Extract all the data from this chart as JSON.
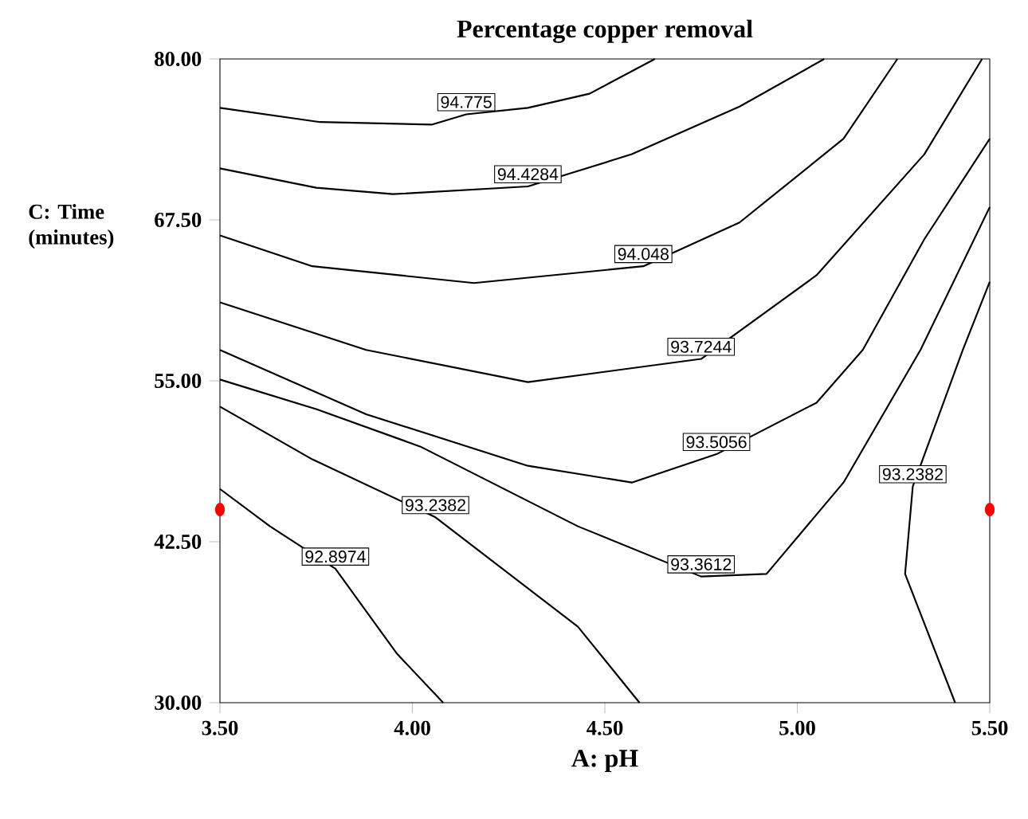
{
  "chart_data": {
    "type": "line",
    "title": "Percentage copper removal",
    "xlabel": "A: pH",
    "ylabel": "C: Time (minutes)",
    "xlim": [
      3.5,
      5.5
    ],
    "ylim": [
      30,
      80
    ],
    "xticks": [
      {
        "value": 3.5,
        "label": "3.50"
      },
      {
        "value": 4.0,
        "label": "4.00"
      },
      {
        "value": 4.5,
        "label": "4.50"
      },
      {
        "value": 5.0,
        "label": "5.00"
      },
      {
        "value": 5.5,
        "label": "5.50"
      }
    ],
    "yticks": [
      {
        "value": 30,
        "label": "30.00"
      },
      {
        "value": 42.5,
        "label": "42.50"
      },
      {
        "value": 55,
        "label": "55.00"
      },
      {
        "value": 67.5,
        "label": "67.50"
      },
      {
        "value": 80,
        "label": "80.00"
      }
    ],
    "grid": false,
    "series": [
      {
        "name": "94.775",
        "color": "#000000",
        "x": [
          3.5,
          3.76,
          4.05,
          4.14,
          4.3,
          4.46,
          4.63
        ],
        "values": [
          76.2,
          75.1,
          74.9,
          75.7,
          76.2,
          77.3,
          80.0
        ]
      },
      {
        "name": "94.4284",
        "color": "#000000",
        "x": [
          3.5,
          3.75,
          3.95,
          4.3,
          4.57,
          4.85,
          5.07
        ],
        "values": [
          71.5,
          70.0,
          69.5,
          70.1,
          72.6,
          76.3,
          80.0
        ]
      },
      {
        "name": "94.048",
        "color": "#000000",
        "x": [
          3.5,
          3.74,
          4.16,
          4.6,
          4.85,
          5.12,
          5.26
        ],
        "values": [
          66.3,
          63.9,
          62.6,
          63.9,
          67.3,
          73.8,
          80.0
        ]
      },
      {
        "name": "93.7244",
        "color": "#000000",
        "x": [
          3.5,
          3.88,
          4.3,
          4.75,
          5.05,
          5.33,
          5.48
        ],
        "values": [
          61.1,
          57.4,
          54.9,
          56.7,
          63.2,
          72.6,
          80.0
        ]
      },
      {
        "name": "93.5056",
        "color": "#000000",
        "x": [
          3.5,
          3.88,
          4.3,
          4.57,
          4.79,
          5.05,
          5.17,
          5.33,
          5.5
        ],
        "values": [
          57.4,
          52.4,
          48.4,
          47.1,
          49.3,
          53.3,
          57.4,
          66.0,
          73.8
        ]
      },
      {
        "name": "93.3612",
        "color": "#000000",
        "x": [
          3.5,
          3.75,
          4.02,
          4.43,
          4.75,
          4.92,
          5.12,
          5.32,
          5.5
        ],
        "values": [
          55.1,
          52.8,
          49.9,
          43.7,
          39.8,
          40.0,
          47.1,
          57.4,
          68.5
        ]
      },
      {
        "name": "93.2382",
        "color": "#000000",
        "x": [
          3.5,
          3.74,
          4.06,
          4.43,
          4.59
        ],
        "values": [
          53.0,
          48.9,
          44.4,
          35.9,
          30.0
        ]
      },
      {
        "name": "93.2382",
        "color": "#000000",
        "x": [
          5.5,
          5.43,
          5.3,
          5.28,
          5.41
        ],
        "values": [
          62.7,
          57.4,
          46.8,
          40.0,
          30.0
        ]
      },
      {
        "name": "92.8974",
        "color": "#000000",
        "x": [
          3.5,
          3.63,
          3.8,
          3.96,
          4.08
        ],
        "values": [
          46.6,
          43.7,
          40.4,
          33.8,
          30.0
        ]
      },
      {
        "type": "scatter",
        "marker": "circle",
        "color": "#ff0000",
        "x": [
          3.5,
          5.5
        ],
        "values": [
          45,
          45
        ]
      }
    ]
  }
}
